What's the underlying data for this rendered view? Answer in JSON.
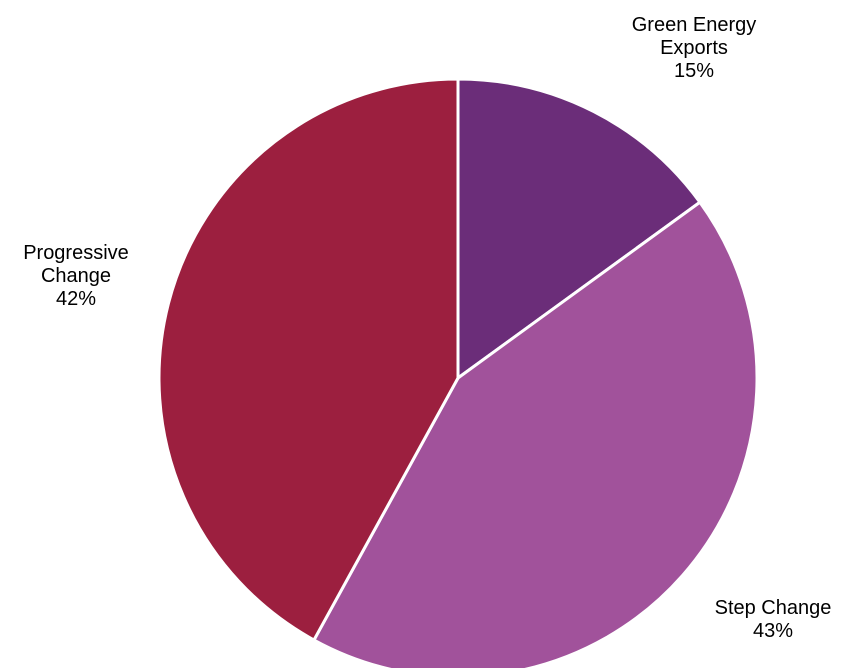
{
  "chart_data": {
    "type": "pie",
    "title": "",
    "legend": "none",
    "slices": [
      {
        "name": "Green Energy Exports",
        "label_lines": [
          "Green  Energy",
          "Exports",
          "15%"
        ],
        "value": 15,
        "color": "#6B2D79"
      },
      {
        "name": "Step Change",
        "label_lines": [
          "Step Change",
          "43%"
        ],
        "value": 43,
        "color": "#A1529B"
      },
      {
        "name": "Progressive Change",
        "label_lines": [
          "Progressive",
          "Change",
          "42%"
        ],
        "value": 42,
        "color": "#9C1F3F"
      }
    ],
    "start_angle_deg": 0,
    "direction": "clockwise"
  }
}
